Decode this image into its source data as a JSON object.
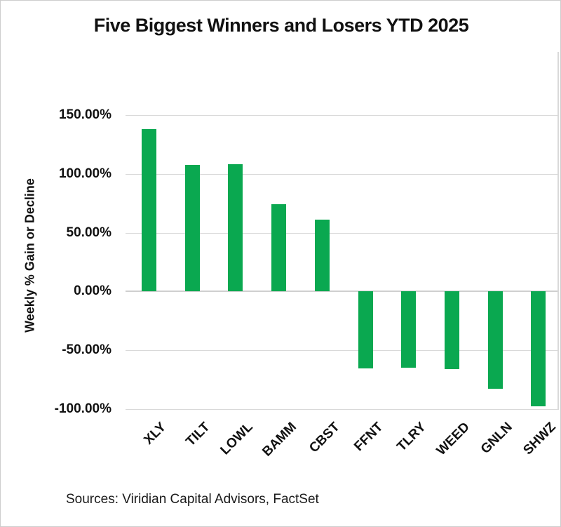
{
  "chart_data": {
    "type": "bar",
    "title": "Five Biggest Winners and Losers YTD 2025",
    "ylabel": "Weekly % Gain or Decline",
    "xlabel": "",
    "categories": [
      "XLY",
      "TILT",
      "LOWL",
      "BAMM",
      "CBST",
      "FFNT",
      "TLRY",
      "WEED",
      "GNLN",
      "SHWZ"
    ],
    "values": [
      138.0,
      107.8,
      108.0,
      74.0,
      61.0,
      -65.2,
      -64.6,
      -65.8,
      -82.5,
      -97.6
    ],
    "unit": "%",
    "ylim": [
      -100,
      150
    ],
    "ytick_step": 50,
    "ytick_values": [
      150,
      100,
      50,
      0,
      -50,
      -100
    ],
    "ytick_labels": [
      "150.00%",
      "100.00%",
      "50.00%",
      "0.00%",
      "-50.00%",
      "-100.00%"
    ],
    "grid": true,
    "legend": "none",
    "bar_color": "#0aa850",
    "gridline_color": "#d9d9d9",
    "zero_line_color": "#cfcfcf",
    "source": "Sources: Viridian Capital Advisors, FactSet"
  }
}
